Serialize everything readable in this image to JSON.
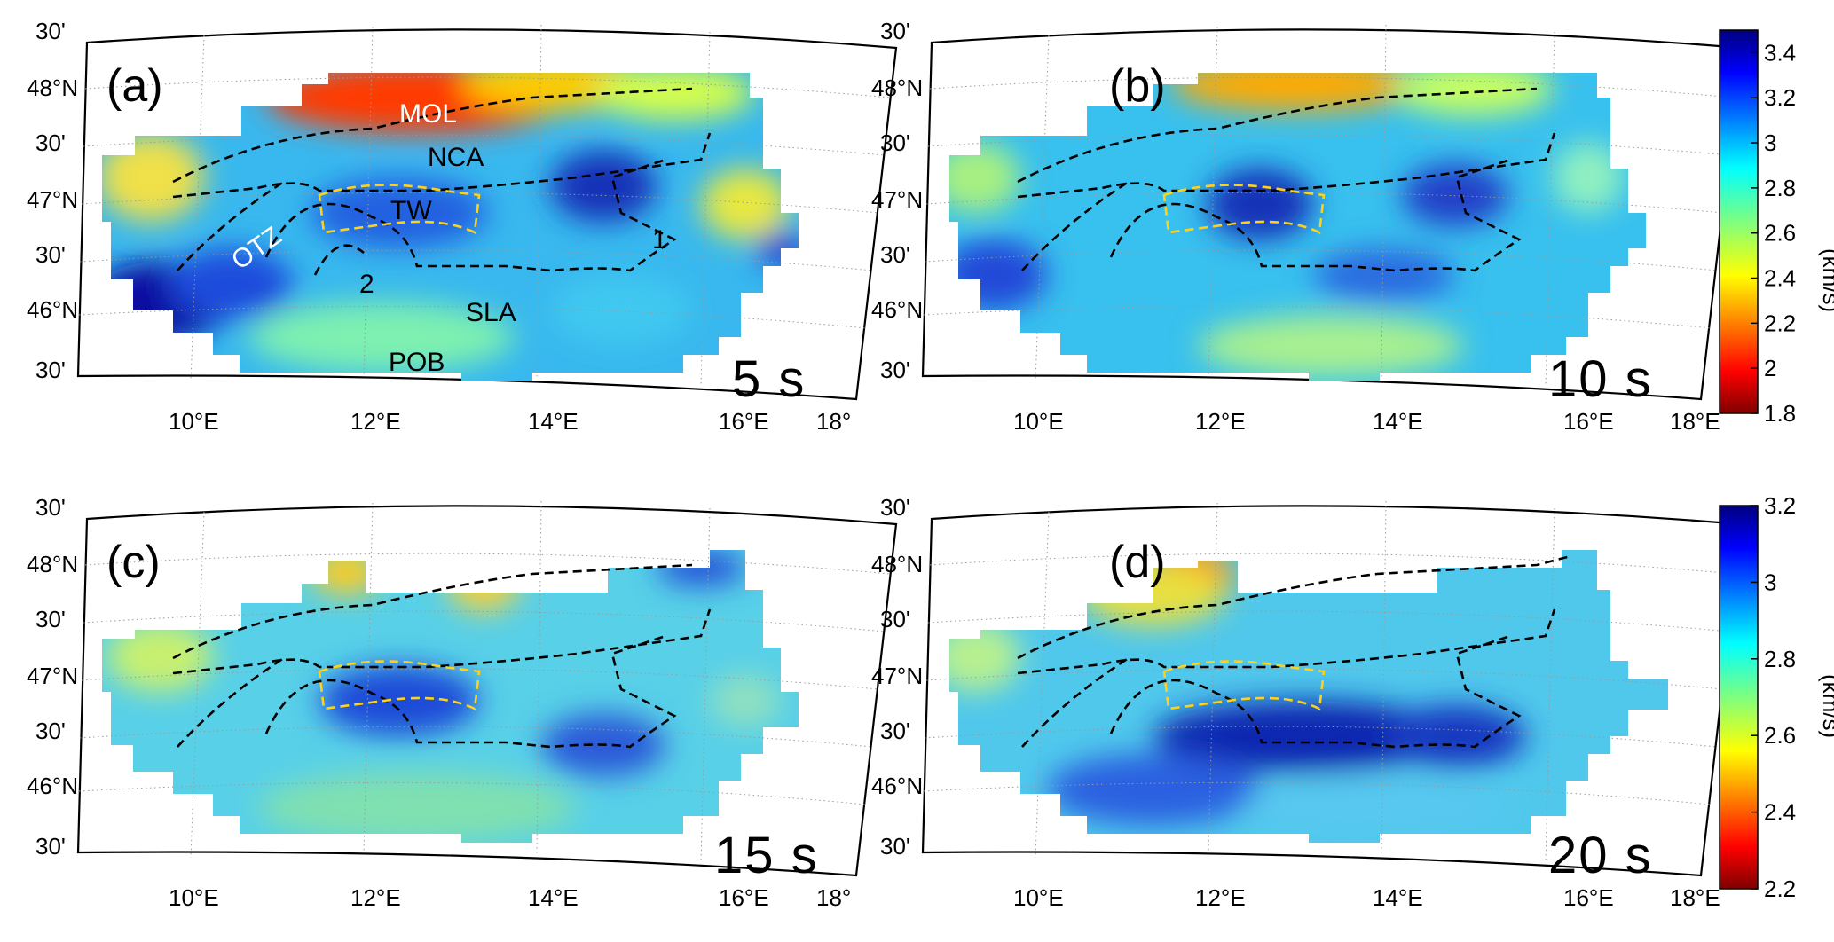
{
  "chart_data": [
    {
      "type": "heatmap",
      "panel_label": "(a)",
      "period": "5 s",
      "lon_ticks": [
        "10°E",
        "12°E",
        "14°E",
        "16°E",
        "18°"
      ],
      "lat_ticks": [
        "30'",
        "46°N",
        "30'",
        "47°N",
        "30'",
        "48°N",
        "30'"
      ],
      "lon_range": [
        8.5,
        18
      ],
      "lat_range": [
        45.6,
        48.55
      ],
      "colorbar": {
        "ticks": [
          "3.4",
          "3.2",
          "3",
          "2.8",
          "2.6",
          "2.4",
          "2.2",
          "2",
          "1.8"
        ],
        "range": [
          1.8,
          3.5
        ],
        "unit": "(km/s)",
        "colormap": "jet"
      },
      "annotations": [
        {
          "text": "MOL",
          "color": "#ffffff"
        },
        {
          "text": "NCA",
          "color": "#000000"
        },
        {
          "text": "TW",
          "color": "#000000"
        },
        {
          "text": "OTZ",
          "color": "#ffffff"
        },
        {
          "text": "1",
          "color": "#000000"
        },
        {
          "text": "2",
          "color": "#000000"
        },
        {
          "text": "SLA",
          "color": "#000000"
        },
        {
          "text": "POB",
          "color": "#000000"
        }
      ],
      "velocity_anomalies": [
        {
          "region": "MOL",
          "lon": 12.8,
          "lat": 48.1,
          "value": 1.9
        },
        {
          "region": "OTZ",
          "lon": 9.7,
          "lat": 46.1,
          "value": 3.4
        },
        {
          "region": "TW",
          "lon": 12.3,
          "lat": 47.1,
          "value": 3.05
        },
        {
          "region": "1",
          "lon": 15.3,
          "lat": 47.2,
          "value": 3.15
        },
        {
          "region": "POB",
          "lon": 12.5,
          "lat": 45.9,
          "value": 2.85
        }
      ]
    },
    {
      "type": "heatmap",
      "panel_label": "(b)",
      "period": "10 s",
      "lon_ticks": [
        "10°E",
        "12°E",
        "14°E",
        "16°E",
        "18°E"
      ],
      "lat_ticks": [
        "30'",
        "46°N",
        "30'",
        "47°N",
        "30'",
        "48°N",
        "30'"
      ],
      "colorbar_ref": "shared with (a)"
    },
    {
      "type": "heatmap",
      "panel_label": "(c)",
      "period": "15 s",
      "lon_ticks": [
        "10°E",
        "12°E",
        "14°E",
        "16°E",
        "18°"
      ],
      "lat_ticks": [
        "30'",
        "46°N",
        "30'",
        "47°N",
        "30'",
        "48°N",
        "30'"
      ],
      "colorbar_ref": "shared with (d)"
    },
    {
      "type": "heatmap",
      "panel_label": "(d)",
      "period": "20 s",
      "lon_ticks": [
        "10°E",
        "12°E",
        "14°E",
        "16°E",
        "18°E"
      ],
      "lat_ticks": [
        "30'",
        "46°N",
        "30'",
        "47°N",
        "30'",
        "48°N",
        "30'"
      ],
      "colorbar": {
        "ticks": [
          "3.2",
          "3",
          "2.8",
          "2.6",
          "2.4",
          "2.2"
        ],
        "range": [
          2.2,
          3.2
        ],
        "unit": "(km/s)",
        "colormap": "jet"
      }
    }
  ],
  "labels": {
    "a": {
      "panel": "(a)",
      "period": "5 s",
      "mol": "MOL",
      "nca": "NCA",
      "tw": "TW",
      "otz": "OTZ",
      "one": "1",
      "two": "2",
      "sla": "SLA",
      "pob": "POB"
    },
    "b": {
      "panel": "(b)",
      "period": "10 s"
    },
    "c": {
      "panel": "(c)",
      "period": "15 s"
    },
    "d": {
      "panel": "(d)",
      "period": "20 s"
    }
  },
  "colors": {
    "jet_low": "#7f0000",
    "jet_mid": "#3dbcf0",
    "jet_high": "#00007f",
    "boundary": "#000000",
    "tauern_window": "#ffd21a"
  }
}
